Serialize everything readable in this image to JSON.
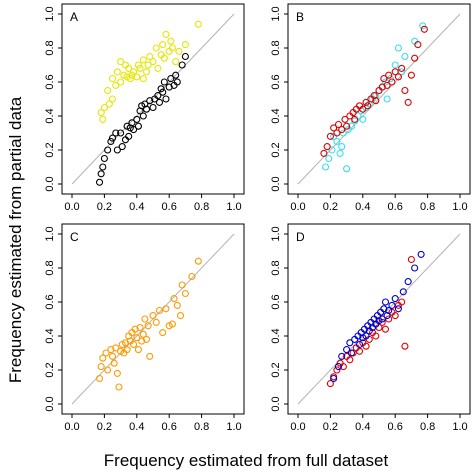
{
  "figure": {
    "xlabel": "Frequency estimated from full dataset",
    "ylabel": "Frequency estimated from partial data"
  },
  "chart_data": [
    {
      "panel": "A",
      "type": "scatter",
      "xticks": [
        "0.0",
        "0.2",
        "0.4",
        "0.6",
        "0.8",
        "1.0"
      ],
      "yticks": [
        "0.0",
        "0.2",
        "0.4",
        "0.6",
        "0.8",
        "1.0"
      ],
      "xlim": [
        0,
        1
      ],
      "ylim": [
        0,
        1
      ],
      "reference_line": "y = x",
      "series": [
        {
          "color": "#e6e600",
          "points": [
            [
              0.18,
              0.42
            ],
            [
              0.19,
              0.38
            ],
            [
              0.2,
              0.45
            ],
            [
              0.22,
              0.55
            ],
            [
              0.23,
              0.47
            ],
            [
              0.25,
              0.5
            ],
            [
              0.25,
              0.62
            ],
            [
              0.27,
              0.58
            ],
            [
              0.28,
              0.66
            ],
            [
              0.3,
              0.72
            ],
            [
              0.3,
              0.6
            ],
            [
              0.32,
              0.64
            ],
            [
              0.33,
              0.7
            ],
            [
              0.34,
              0.63
            ],
            [
              0.35,
              0.68
            ],
            [
              0.36,
              0.62
            ],
            [
              0.37,
              0.64
            ],
            [
              0.38,
              0.66
            ],
            [
              0.4,
              0.63
            ],
            [
              0.41,
              0.7
            ],
            [
              0.42,
              0.68
            ],
            [
              0.44,
              0.62
            ],
            [
              0.44,
              0.73
            ],
            [
              0.46,
              0.66
            ],
            [
              0.47,
              0.7
            ],
            [
              0.48,
              0.75
            ],
            [
              0.5,
              0.72
            ],
            [
              0.52,
              0.8
            ],
            [
              0.53,
              0.68
            ],
            [
              0.55,
              0.76
            ],
            [
              0.56,
              0.82
            ],
            [
              0.57,
              0.74
            ],
            [
              0.58,
              0.88
            ],
            [
              0.6,
              0.78
            ],
            [
              0.61,
              0.84
            ],
            [
              0.62,
              0.8
            ],
            [
              0.64,
              0.72
            ],
            [
              0.66,
              0.78
            ],
            [
              0.7,
              0.82
            ],
            [
              0.78,
              0.94
            ]
          ]
        },
        {
          "color": "#000000",
          "points": [
            [
              0.17,
              0.01
            ],
            [
              0.18,
              0.06
            ],
            [
              0.19,
              0.1
            ],
            [
              0.2,
              0.15
            ],
            [
              0.22,
              0.2
            ],
            [
              0.24,
              0.25
            ],
            [
              0.25,
              0.27
            ],
            [
              0.27,
              0.3
            ],
            [
              0.28,
              0.2
            ],
            [
              0.3,
              0.3
            ],
            [
              0.31,
              0.22
            ],
            [
              0.33,
              0.26
            ],
            [
              0.34,
              0.34
            ],
            [
              0.35,
              0.28
            ],
            [
              0.36,
              0.33
            ],
            [
              0.37,
              0.36
            ],
            [
              0.38,
              0.32
            ],
            [
              0.4,
              0.38
            ],
            [
              0.41,
              0.34
            ],
            [
              0.42,
              0.43
            ],
            [
              0.43,
              0.46
            ],
            [
              0.44,
              0.4
            ],
            [
              0.45,
              0.47
            ],
            [
              0.46,
              0.44
            ],
            [
              0.48,
              0.49
            ],
            [
              0.5,
              0.45
            ],
            [
              0.51,
              0.5
            ],
            [
              0.53,
              0.52
            ],
            [
              0.54,
              0.48
            ],
            [
              0.55,
              0.56
            ],
            [
              0.56,
              0.54
            ],
            [
              0.57,
              0.6
            ],
            [
              0.58,
              0.5
            ],
            [
              0.6,
              0.57
            ],
            [
              0.61,
              0.62
            ],
            [
              0.63,
              0.58
            ],
            [
              0.64,
              0.64
            ],
            [
              0.65,
              0.6
            ],
            [
              0.68,
              0.7
            ],
            [
              0.7,
              0.75
            ]
          ]
        }
      ]
    },
    {
      "panel": "B",
      "type": "scatter",
      "xticks": [
        "0.0",
        "0.2",
        "0.4",
        "0.6",
        "0.8",
        "1.0"
      ],
      "yticks": [
        "0.0",
        "0.2",
        "0.4",
        "0.6",
        "0.8",
        "1.0"
      ],
      "xlim": [
        0,
        1
      ],
      "ylim": [
        0,
        1
      ],
      "reference_line": "y = x",
      "series": [
        {
          "color": "#33e0f0",
          "points": [
            [
              0.17,
              0.1
            ],
            [
              0.19,
              0.15
            ],
            [
              0.21,
              0.2
            ],
            [
              0.22,
              0.28
            ],
            [
              0.24,
              0.25
            ],
            [
              0.26,
              0.18
            ],
            [
              0.27,
              0.22
            ],
            [
              0.28,
              0.3
            ],
            [
              0.3,
              0.09
            ],
            [
              0.31,
              0.32
            ],
            [
              0.33,
              0.34
            ],
            [
              0.35,
              0.37
            ],
            [
              0.37,
              0.4
            ],
            [
              0.39,
              0.43
            ],
            [
              0.4,
              0.38
            ],
            [
              0.42,
              0.45
            ],
            [
              0.44,
              0.47
            ],
            [
              0.46,
              0.5
            ],
            [
              0.48,
              0.52
            ],
            [
              0.5,
              0.55
            ],
            [
              0.52,
              0.57
            ],
            [
              0.54,
              0.6
            ],
            [
              0.55,
              0.5
            ],
            [
              0.57,
              0.62
            ],
            [
              0.6,
              0.7
            ],
            [
              0.62,
              0.8
            ],
            [
              0.64,
              0.66
            ],
            [
              0.66,
              0.75
            ],
            [
              0.72,
              0.84
            ],
            [
              0.77,
              0.93
            ]
          ]
        },
        {
          "color": "#dd0000",
          "points": [
            [
              0.16,
              0.18
            ],
            [
              0.18,
              0.22
            ],
            [
              0.2,
              0.28
            ],
            [
              0.22,
              0.33
            ],
            [
              0.24,
              0.3
            ],
            [
              0.25,
              0.35
            ],
            [
              0.27,
              0.32
            ],
            [
              0.29,
              0.38
            ],
            [
              0.3,
              0.34
            ],
            [
              0.32,
              0.4
            ],
            [
              0.34,
              0.42
            ],
            [
              0.35,
              0.38
            ],
            [
              0.36,
              0.44
            ],
            [
              0.38,
              0.46
            ],
            [
              0.4,
              0.44
            ],
            [
              0.42,
              0.48
            ],
            [
              0.43,
              0.46
            ],
            [
              0.45,
              0.5
            ],
            [
              0.47,
              0.52
            ],
            [
              0.48,
              0.49
            ],
            [
              0.5,
              0.55
            ],
            [
              0.52,
              0.57
            ],
            [
              0.53,
              0.62
            ],
            [
              0.55,
              0.58
            ],
            [
              0.56,
              0.64
            ],
            [
              0.58,
              0.6
            ],
            [
              0.6,
              0.66
            ],
            [
              0.62,
              0.63
            ],
            [
              0.64,
              0.68
            ],
            [
              0.66,
              0.55
            ],
            [
              0.68,
              0.48
            ],
            [
              0.7,
              0.64
            ],
            [
              0.72,
              0.74
            ],
            [
              0.74,
              0.82
            ],
            [
              0.78,
              0.91
            ]
          ]
        }
      ]
    },
    {
      "panel": "C",
      "type": "scatter",
      "xticks": [
        "0.0",
        "0.2",
        "0.4",
        "0.6",
        "0.8",
        "1.0"
      ],
      "yticks": [
        "0.0",
        "0.2",
        "0.4",
        "0.6",
        "0.8",
        "1.0"
      ],
      "xlim": [
        0,
        1
      ],
      "ylim": [
        0,
        1
      ],
      "reference_line": "y = x",
      "series": [
        {
          "color": "#ff9900",
          "points": [
            [
              0.17,
              0.15
            ],
            [
              0.18,
              0.22
            ],
            [
              0.19,
              0.27
            ],
            [
              0.21,
              0.3
            ],
            [
              0.22,
              0.2
            ],
            [
              0.24,
              0.32
            ],
            [
              0.25,
              0.28
            ],
            [
              0.26,
              0.24
            ],
            [
              0.27,
              0.33
            ],
            [
              0.28,
              0.18
            ],
            [
              0.29,
              0.1
            ],
            [
              0.3,
              0.31
            ],
            [
              0.31,
              0.35
            ],
            [
              0.32,
              0.3
            ],
            [
              0.33,
              0.36
            ],
            [
              0.34,
              0.32
            ],
            [
              0.35,
              0.4
            ],
            [
              0.36,
              0.37
            ],
            [
              0.37,
              0.42
            ],
            [
              0.38,
              0.35
            ],
            [
              0.39,
              0.44
            ],
            [
              0.4,
              0.39
            ],
            [
              0.41,
              0.32
            ],
            [
              0.42,
              0.45
            ],
            [
              0.43,
              0.37
            ],
            [
              0.44,
              0.41
            ],
            [
              0.45,
              0.5
            ],
            [
              0.46,
              0.38
            ],
            [
              0.47,
              0.46
            ],
            [
              0.48,
              0.28
            ],
            [
              0.5,
              0.52
            ],
            [
              0.52,
              0.48
            ],
            [
              0.54,
              0.55
            ],
            [
              0.56,
              0.42
            ],
            [
              0.58,
              0.56
            ],
            [
              0.6,
              0.46
            ],
            [
              0.62,
              0.47
            ],
            [
              0.63,
              0.62
            ],
            [
              0.65,
              0.58
            ],
            [
              0.67,
              0.52
            ],
            [
              0.68,
              0.7
            ],
            [
              0.7,
              0.65
            ],
            [
              0.74,
              0.75
            ],
            [
              0.78,
              0.84
            ]
          ]
        }
      ]
    },
    {
      "panel": "D",
      "type": "scatter",
      "xticks": [
        "0.0",
        "0.2",
        "0.4",
        "0.6",
        "0.8",
        "1.0"
      ],
      "yticks": [
        "0.0",
        "0.2",
        "0.4",
        "0.6",
        "0.8",
        "1.0"
      ],
      "xlim": [
        0,
        1
      ],
      "ylim": [
        0,
        1
      ],
      "reference_line": "y = x",
      "series": [
        {
          "color": "#e00000",
          "points": [
            [
              0.2,
              0.12
            ],
            [
              0.22,
              0.16
            ],
            [
              0.24,
              0.2
            ],
            [
              0.26,
              0.24
            ],
            [
              0.28,
              0.22
            ],
            [
              0.3,
              0.28
            ],
            [
              0.32,
              0.26
            ],
            [
              0.34,
              0.3
            ],
            [
              0.36,
              0.33
            ],
            [
              0.38,
              0.31
            ],
            [
              0.4,
              0.36
            ],
            [
              0.42,
              0.34
            ],
            [
              0.44,
              0.38
            ],
            [
              0.46,
              0.42
            ],
            [
              0.48,
              0.4
            ],
            [
              0.5,
              0.45
            ],
            [
              0.52,
              0.48
            ],
            [
              0.54,
              0.44
            ],
            [
              0.56,
              0.5
            ],
            [
              0.58,
              0.54
            ],
            [
              0.6,
              0.52
            ],
            [
              0.62,
              0.58
            ],
            [
              0.64,
              0.6
            ],
            [
              0.66,
              0.34
            ],
            [
              0.7,
              0.85
            ]
          ]
        },
        {
          "color": "#0000cc",
          "points": [
            [
              0.22,
              0.15
            ],
            [
              0.25,
              0.22
            ],
            [
              0.27,
              0.28
            ],
            [
              0.3,
              0.32
            ],
            [
              0.32,
              0.36
            ],
            [
              0.33,
              0.3
            ],
            [
              0.35,
              0.38
            ],
            [
              0.37,
              0.4
            ],
            [
              0.38,
              0.35
            ],
            [
              0.39,
              0.42
            ],
            [
              0.4,
              0.39
            ],
            [
              0.41,
              0.44
            ],
            [
              0.42,
              0.4
            ],
            [
              0.43,
              0.46
            ],
            [
              0.44,
              0.43
            ],
            [
              0.45,
              0.48
            ],
            [
              0.46,
              0.45
            ],
            [
              0.47,
              0.5
            ],
            [
              0.48,
              0.47
            ],
            [
              0.49,
              0.52
            ],
            [
              0.5,
              0.49
            ],
            [
              0.51,
              0.54
            ],
            [
              0.52,
              0.5
            ],
            [
              0.53,
              0.56
            ],
            [
              0.54,
              0.6
            ],
            [
              0.55,
              0.52
            ],
            [
              0.56,
              0.55
            ],
            [
              0.58,
              0.58
            ],
            [
              0.6,
              0.62
            ],
            [
              0.62,
              0.56
            ],
            [
              0.65,
              0.66
            ],
            [
              0.68,
              0.72
            ],
            [
              0.72,
              0.8
            ],
            [
              0.76,
              0.88
            ]
          ]
        }
      ]
    }
  ]
}
